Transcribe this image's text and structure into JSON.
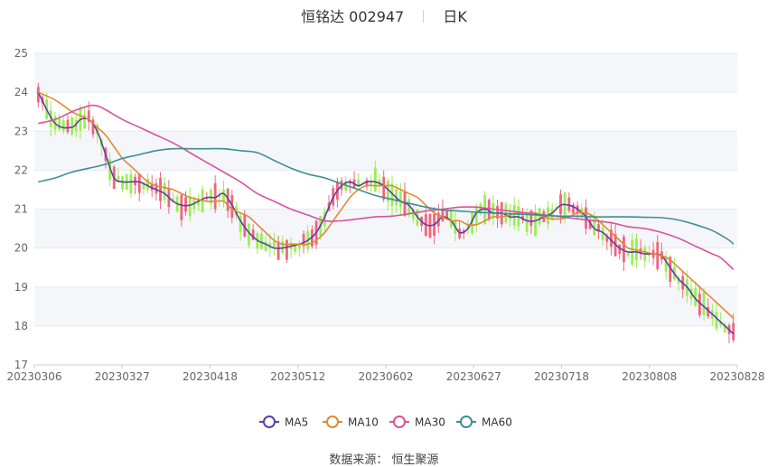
{
  "header": {
    "title": "恒铭达 002947",
    "period": "日K"
  },
  "source_label": "数据来源： 恒生聚源",
  "colors": {
    "up": "#f0657d",
    "down": "#99ee55",
    "ma5": "#5e3fa0",
    "ma10": "#e08a33",
    "ma30": "#d653a0",
    "ma60": "#3d8f93",
    "grid": "#e6e8f0",
    "band": "#f5f6fa",
    "axis_text": "#666666"
  },
  "chart_data": {
    "type": "candlestick",
    "title": "恒铭达 002947",
    "y_ticks": [
      "25",
      "24",
      "23",
      "22",
      "21",
      "20",
      "19",
      "18",
      "17"
    ],
    "ylim": [
      17,
      25
    ],
    "x_labels": [
      "20230306",
      "20230327",
      "20230418",
      "20230512",
      "20230602",
      "20230627",
      "20230718",
      "20230808",
      "20230828"
    ],
    "grid": true,
    "legend_position": "bottom-center",
    "legend": [
      {
        "name": "MA5",
        "color": "#5e3fa0"
      },
      {
        "name": "MA10",
        "color": "#e08a33"
      },
      {
        "name": "MA30",
        "color": "#d653a0"
      },
      {
        "name": "MA60",
        "color": "#3d8f93"
      }
    ],
    "ma_series": [
      {
        "name": "MA5",
        "points": [
          [
            0,
            24.0
          ],
          [
            4,
            23.2
          ],
          [
            8,
            23.1
          ],
          [
            10,
            23.3
          ],
          [
            12,
            23.3
          ],
          [
            14,
            23.0
          ],
          [
            16,
            22.4
          ],
          [
            18,
            21.8
          ],
          [
            20,
            21.7
          ],
          [
            22,
            21.7
          ],
          [
            24,
            21.7
          ],
          [
            26,
            21.6
          ],
          [
            28,
            21.5
          ],
          [
            30,
            21.4
          ],
          [
            32,
            21.2
          ],
          [
            34,
            21.1
          ],
          [
            36,
            21.1
          ],
          [
            38,
            21.2
          ],
          [
            40,
            21.3
          ],
          [
            42,
            21.3
          ],
          [
            44,
            21.4
          ],
          [
            46,
            21.1
          ],
          [
            48,
            20.7
          ],
          [
            50,
            20.4
          ],
          [
            52,
            20.2
          ],
          [
            54,
            20.1
          ],
          [
            56,
            20.0
          ],
          [
            58,
            20.0
          ],
          [
            60,
            20.05
          ],
          [
            62,
            20.1
          ],
          [
            64,
            20.2
          ],
          [
            66,
            20.4
          ],
          [
            68,
            20.8
          ],
          [
            70,
            21.3
          ],
          [
            72,
            21.6
          ],
          [
            74,
            21.7
          ],
          [
            76,
            21.6
          ],
          [
            78,
            21.7
          ],
          [
            80,
            21.7
          ],
          [
            82,
            21.6
          ],
          [
            84,
            21.4
          ],
          [
            86,
            21.2
          ],
          [
            88,
            21.1
          ],
          [
            90,
            20.8
          ],
          [
            92,
            20.6
          ],
          [
            94,
            20.6
          ],
          [
            96,
            20.8
          ],
          [
            98,
            20.7
          ],
          [
            100,
            20.4
          ],
          [
            102,
            20.5
          ],
          [
            104,
            20.9
          ],
          [
            106,
            21.0
          ],
          [
            108,
            20.9
          ],
          [
            110,
            20.9
          ],
          [
            112,
            20.8
          ],
          [
            114,
            20.8
          ],
          [
            116,
            20.7
          ],
          [
            118,
            20.7
          ],
          [
            120,
            20.8
          ],
          [
            122,
            20.9
          ],
          [
            124,
            21.1
          ],
          [
            126,
            21.1
          ],
          [
            128,
            21.0
          ],
          [
            130,
            20.8
          ],
          [
            132,
            20.5
          ],
          [
            134,
            20.4
          ],
          [
            136,
            20.2
          ],
          [
            138,
            20.0
          ],
          [
            140,
            19.9
          ],
          [
            142,
            19.9
          ],
          [
            144,
            19.85
          ],
          [
            146,
            19.85
          ],
          [
            148,
            19.8
          ],
          [
            150,
            19.5
          ],
          [
            152,
            19.2
          ],
          [
            154,
            19.0
          ],
          [
            156,
            18.7
          ],
          [
            158,
            18.5
          ],
          [
            160,
            18.3
          ],
          [
            162,
            18.1
          ],
          [
            164,
            17.9
          ],
          [
            165,
            17.8
          ]
        ]
      },
      {
        "name": "MA10",
        "points": [
          [
            0,
            24.0
          ],
          [
            4,
            23.8
          ],
          [
            8,
            23.5
          ],
          [
            10,
            23.4
          ],
          [
            12,
            23.3
          ],
          [
            14,
            23.1
          ],
          [
            16,
            22.9
          ],
          [
            18,
            22.6
          ],
          [
            20,
            22.3
          ],
          [
            22,
            22.1
          ],
          [
            24,
            21.9
          ],
          [
            26,
            21.7
          ],
          [
            28,
            21.6
          ],
          [
            30,
            21.55
          ],
          [
            32,
            21.5
          ],
          [
            34,
            21.4
          ],
          [
            36,
            21.3
          ],
          [
            38,
            21.25
          ],
          [
            40,
            21.2
          ],
          [
            42,
            21.2
          ],
          [
            44,
            21.2
          ],
          [
            46,
            21.0
          ],
          [
            48,
            20.9
          ],
          [
            50,
            20.8
          ],
          [
            52,
            20.6
          ],
          [
            54,
            20.4
          ],
          [
            56,
            20.2
          ],
          [
            58,
            20.1
          ],
          [
            60,
            20.1
          ],
          [
            62,
            20.1
          ],
          [
            64,
            20.1
          ],
          [
            66,
            20.2
          ],
          [
            68,
            20.4
          ],
          [
            70,
            20.7
          ],
          [
            72,
            21.0
          ],
          [
            74,
            21.3
          ],
          [
            76,
            21.5
          ],
          [
            78,
            21.6
          ],
          [
            80,
            21.6
          ],
          [
            82,
            21.6
          ],
          [
            84,
            21.6
          ],
          [
            86,
            21.5
          ],
          [
            88,
            21.4
          ],
          [
            90,
            21.3
          ],
          [
            92,
            21.1
          ],
          [
            94,
            20.9
          ],
          [
            96,
            20.8
          ],
          [
            98,
            20.7
          ],
          [
            100,
            20.7
          ],
          [
            102,
            20.6
          ],
          [
            104,
            20.6
          ],
          [
            106,
            20.7
          ],
          [
            108,
            20.8
          ],
          [
            110,
            20.8
          ],
          [
            112,
            20.85
          ],
          [
            114,
            20.9
          ],
          [
            116,
            20.9
          ],
          [
            118,
            20.9
          ],
          [
            120,
            20.8
          ],
          [
            122,
            20.75
          ],
          [
            124,
            20.75
          ],
          [
            126,
            20.8
          ],
          [
            128,
            20.9
          ],
          [
            130,
            20.9
          ],
          [
            132,
            20.8
          ],
          [
            134,
            20.6
          ],
          [
            136,
            20.4
          ],
          [
            138,
            20.2
          ],
          [
            140,
            20.0
          ],
          [
            142,
            19.95
          ],
          [
            144,
            19.9
          ],
          [
            146,
            19.85
          ],
          [
            148,
            19.8
          ],
          [
            150,
            19.7
          ],
          [
            152,
            19.5
          ],
          [
            154,
            19.3
          ],
          [
            156,
            19.1
          ],
          [
            158,
            18.9
          ],
          [
            160,
            18.7
          ],
          [
            162,
            18.5
          ],
          [
            164,
            18.3
          ],
          [
            165,
            18.2
          ]
        ]
      },
      {
        "name": "MA30",
        "points": [
          [
            0,
            23.2
          ],
          [
            4,
            23.3
          ],
          [
            8,
            23.5
          ],
          [
            12,
            23.65
          ],
          [
            14,
            23.65
          ],
          [
            16,
            23.55
          ],
          [
            20,
            23.3
          ],
          [
            24,
            23.1
          ],
          [
            28,
            22.9
          ],
          [
            32,
            22.7
          ],
          [
            36,
            22.45
          ],
          [
            40,
            22.2
          ],
          [
            44,
            21.95
          ],
          [
            48,
            21.7
          ],
          [
            52,
            21.4
          ],
          [
            56,
            21.2
          ],
          [
            60,
            21.0
          ],
          [
            64,
            20.85
          ],
          [
            68,
            20.7
          ],
          [
            72,
            20.7
          ],
          [
            76,
            20.75
          ],
          [
            80,
            20.8
          ],
          [
            84,
            20.82
          ],
          [
            88,
            20.88
          ],
          [
            92,
            20.95
          ],
          [
            96,
            21.0
          ],
          [
            100,
            21.05
          ],
          [
            104,
            21.05
          ],
          [
            108,
            21.0
          ],
          [
            112,
            20.95
          ],
          [
            116,
            20.9
          ],
          [
            120,
            20.85
          ],
          [
            124,
            20.8
          ],
          [
            128,
            20.75
          ],
          [
            132,
            20.7
          ],
          [
            136,
            20.65
          ],
          [
            140,
            20.55
          ],
          [
            144,
            20.5
          ],
          [
            148,
            20.4
          ],
          [
            152,
            20.25
          ],
          [
            156,
            20.05
          ],
          [
            160,
            19.85
          ],
          [
            162,
            19.75
          ],
          [
            165,
            19.45
          ]
        ]
      },
      {
        "name": "MA60",
        "points": [
          [
            0,
            21.7
          ],
          [
            4,
            21.8
          ],
          [
            8,
            21.95
          ],
          [
            12,
            22.05
          ],
          [
            16,
            22.15
          ],
          [
            20,
            22.3
          ],
          [
            24,
            22.4
          ],
          [
            28,
            22.5
          ],
          [
            32,
            22.55
          ],
          [
            36,
            22.55
          ],
          [
            40,
            22.55
          ],
          [
            44,
            22.55
          ],
          [
            48,
            22.5
          ],
          [
            52,
            22.45
          ],
          [
            56,
            22.25
          ],
          [
            60,
            22.05
          ],
          [
            64,
            21.9
          ],
          [
            68,
            21.8
          ],
          [
            72,
            21.65
          ],
          [
            76,
            21.5
          ],
          [
            80,
            21.35
          ],
          [
            84,
            21.25
          ],
          [
            88,
            21.15
          ],
          [
            92,
            21.05
          ],
          [
            96,
            20.98
          ],
          [
            100,
            20.95
          ],
          [
            104,
            20.92
          ],
          [
            108,
            20.9
          ],
          [
            112,
            20.88
          ],
          [
            116,
            20.86
          ],
          [
            120,
            20.84
          ],
          [
            124,
            20.82
          ],
          [
            128,
            20.82
          ],
          [
            132,
            20.8
          ],
          [
            136,
            20.8
          ],
          [
            140,
            20.8
          ],
          [
            144,
            20.79
          ],
          [
            148,
            20.78
          ],
          [
            152,
            20.72
          ],
          [
            156,
            20.6
          ],
          [
            160,
            20.45
          ],
          [
            164,
            20.2
          ],
          [
            165,
            20.1
          ]
        ]
      }
    ]
  }
}
